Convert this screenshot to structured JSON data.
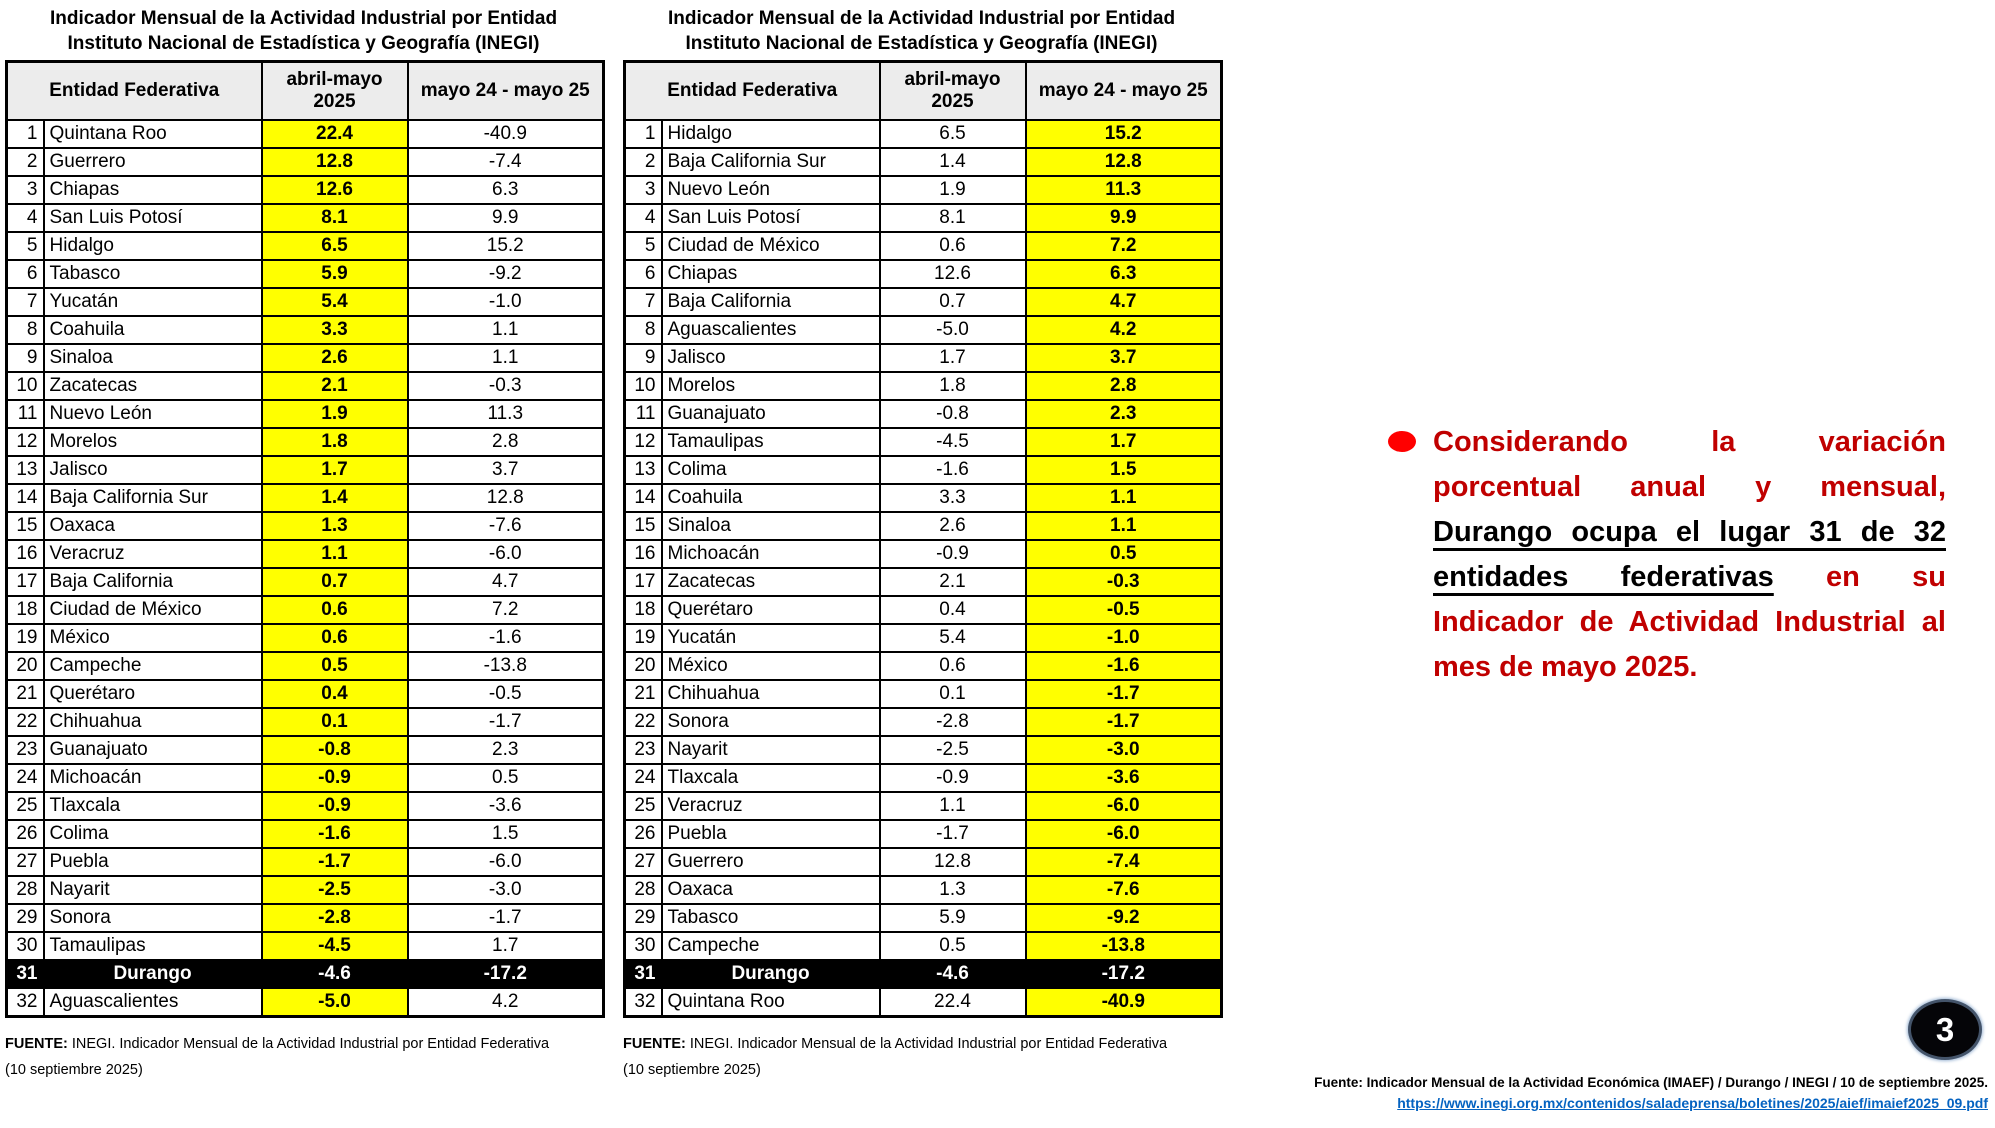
{
  "page": {
    "number": "3"
  },
  "colors": {
    "highlight_yellow": "#FFFF00",
    "durango_row_bg": "#000000",
    "header_fill": "#ECECEC",
    "annotation_red": "#C00000",
    "bullet_red": "#FF0000",
    "link_blue": "#0563C1"
  },
  "tables": [
    {
      "title_line1": "Indicador Mensual de la Actividad Industrial por Entidad",
      "title_line2": "Instituto Nacional de Estadística y Geografía (INEGI)",
      "col_headers": {
        "entidad": "Entidad Federativa",
        "col1": "abril-mayo 2025",
        "col2": "mayo 24 - mayo 25"
      },
      "highlight_column": "col1",
      "rows": [
        {
          "rank": "1",
          "entidad": "Quintana Roo",
          "col1": "22.4",
          "col2": "-40.9",
          "highlight_row": false
        },
        {
          "rank": "2",
          "entidad": "Guerrero",
          "col1": "12.8",
          "col2": "-7.4",
          "highlight_row": false
        },
        {
          "rank": "3",
          "entidad": "Chiapas",
          "col1": "12.6",
          "col2": "6.3",
          "highlight_row": false
        },
        {
          "rank": "4",
          "entidad": "San Luis Potosí",
          "col1": "8.1",
          "col2": "9.9",
          "highlight_row": false
        },
        {
          "rank": "5",
          "entidad": "Hidalgo",
          "col1": "6.5",
          "col2": "15.2",
          "highlight_row": false
        },
        {
          "rank": "6",
          "entidad": "Tabasco",
          "col1": "5.9",
          "col2": "-9.2",
          "highlight_row": false
        },
        {
          "rank": "7",
          "entidad": "Yucatán",
          "col1": "5.4",
          "col2": "-1.0",
          "highlight_row": false
        },
        {
          "rank": "8",
          "entidad": "Coahuila",
          "col1": "3.3",
          "col2": "1.1",
          "highlight_row": false
        },
        {
          "rank": "9",
          "entidad": "Sinaloa",
          "col1": "2.6",
          "col2": "1.1",
          "highlight_row": false
        },
        {
          "rank": "10",
          "entidad": "Zacatecas",
          "col1": "2.1",
          "col2": "-0.3",
          "highlight_row": false
        },
        {
          "rank": "11",
          "entidad": "Nuevo León",
          "col1": "1.9",
          "col2": "11.3",
          "highlight_row": false
        },
        {
          "rank": "12",
          "entidad": "Morelos",
          "col1": "1.8",
          "col2": "2.8",
          "highlight_row": false
        },
        {
          "rank": "13",
          "entidad": "Jalisco",
          "col1": "1.7",
          "col2": "3.7",
          "highlight_row": false
        },
        {
          "rank": "14",
          "entidad": "Baja California Sur",
          "col1": "1.4",
          "col2": "12.8",
          "highlight_row": false
        },
        {
          "rank": "15",
          "entidad": "Oaxaca",
          "col1": "1.3",
          "col2": "-7.6",
          "highlight_row": false
        },
        {
          "rank": "16",
          "entidad": "Veracruz",
          "col1": "1.1",
          "col2": "-6.0",
          "highlight_row": false
        },
        {
          "rank": "17",
          "entidad": "Baja California",
          "col1": "0.7",
          "col2": "4.7",
          "highlight_row": false
        },
        {
          "rank": "18",
          "entidad": "Ciudad de México",
          "col1": "0.6",
          "col2": "7.2",
          "highlight_row": false
        },
        {
          "rank": "19",
          "entidad": "México",
          "col1": "0.6",
          "col2": "-1.6",
          "highlight_row": false
        },
        {
          "rank": "20",
          "entidad": "Campeche",
          "col1": "0.5",
          "col2": "-13.8",
          "highlight_row": false
        },
        {
          "rank": "21",
          "entidad": "Querétaro",
          "col1": "0.4",
          "col2": "-0.5",
          "highlight_row": false
        },
        {
          "rank": "22",
          "entidad": "Chihuahua",
          "col1": "0.1",
          "col2": "-1.7",
          "highlight_row": false
        },
        {
          "rank": "23",
          "entidad": "Guanajuato",
          "col1": "-0.8",
          "col2": "2.3",
          "highlight_row": false
        },
        {
          "rank": "24",
          "entidad": "Michoacán",
          "col1": "-0.9",
          "col2": "0.5",
          "highlight_row": false
        },
        {
          "rank": "25",
          "entidad": "Tlaxcala",
          "col1": "-0.9",
          "col2": "-3.6",
          "highlight_row": false
        },
        {
          "rank": "26",
          "entidad": "Colima",
          "col1": "-1.6",
          "col2": "1.5",
          "highlight_row": false
        },
        {
          "rank": "27",
          "entidad": "Puebla",
          "col1": "-1.7",
          "col2": "-6.0",
          "highlight_row": false
        },
        {
          "rank": "28",
          "entidad": "Nayarit",
          "col1": "-2.5",
          "col2": "-3.0",
          "highlight_row": false
        },
        {
          "rank": "29",
          "entidad": "Sonora",
          "col1": "-2.8",
          "col2": "-1.7",
          "highlight_row": false
        },
        {
          "rank": "30",
          "entidad": "Tamaulipas",
          "col1": "-4.5",
          "col2": "1.7",
          "highlight_row": false
        },
        {
          "rank": "31",
          "entidad": "Durango",
          "col1": "-4.6",
          "col2": "-17.2",
          "highlight_row": true
        },
        {
          "rank": "32",
          "entidad": "Aguascalientes",
          "col1": "-5.0",
          "col2": "4.2",
          "highlight_row": false
        }
      ],
      "fuente_label": "FUENTE:",
      "fuente_text": " INEGI. Indicador Mensual de la Actividad Industrial por Entidad Federativa",
      "fuente_line2": "(10 septiembre 2025)"
    },
    {
      "title_line1": "Indicador Mensual de la Actividad Industrial por Entidad",
      "title_line2": "Instituto Nacional de Estadística y Geografía (INEGI)",
      "col_headers": {
        "entidad": "Entidad Federativa",
        "col1": "abril-mayo 2025",
        "col2": "mayo 24 - mayo 25"
      },
      "highlight_column": "col2",
      "rows": [
        {
          "rank": "1",
          "entidad": "Hidalgo",
          "col1": "6.5",
          "col2": "15.2",
          "highlight_row": false
        },
        {
          "rank": "2",
          "entidad": "Baja California Sur",
          "col1": "1.4",
          "col2": "12.8",
          "highlight_row": false
        },
        {
          "rank": "3",
          "entidad": "Nuevo León",
          "col1": "1.9",
          "col2": "11.3",
          "highlight_row": false
        },
        {
          "rank": "4",
          "entidad": "San Luis Potosí",
          "col1": "8.1",
          "col2": "9.9",
          "highlight_row": false
        },
        {
          "rank": "5",
          "entidad": "Ciudad de México",
          "col1": "0.6",
          "col2": "7.2",
          "highlight_row": false
        },
        {
          "rank": "6",
          "entidad": "Chiapas",
          "col1": "12.6",
          "col2": "6.3",
          "highlight_row": false
        },
        {
          "rank": "7",
          "entidad": "Baja California",
          "col1": "0.7",
          "col2": "4.7",
          "highlight_row": false
        },
        {
          "rank": "8",
          "entidad": "Aguascalientes",
          "col1": "-5.0",
          "col2": "4.2",
          "highlight_row": false
        },
        {
          "rank": "9",
          "entidad": "Jalisco",
          "col1": "1.7",
          "col2": "3.7",
          "highlight_row": false
        },
        {
          "rank": "10",
          "entidad": "Morelos",
          "col1": "1.8",
          "col2": "2.8",
          "highlight_row": false
        },
        {
          "rank": "11",
          "entidad": "Guanajuato",
          "col1": "-0.8",
          "col2": "2.3",
          "highlight_row": false
        },
        {
          "rank": "12",
          "entidad": "Tamaulipas",
          "col1": "-4.5",
          "col2": "1.7",
          "highlight_row": false
        },
        {
          "rank": "13",
          "entidad": "Colima",
          "col1": "-1.6",
          "col2": "1.5",
          "highlight_row": false
        },
        {
          "rank": "14",
          "entidad": "Coahuila",
          "col1": "3.3",
          "col2": "1.1",
          "highlight_row": false
        },
        {
          "rank": "15",
          "entidad": "Sinaloa",
          "col1": "2.6",
          "col2": "1.1",
          "highlight_row": false
        },
        {
          "rank": "16",
          "entidad": "Michoacán",
          "col1": "-0.9",
          "col2": "0.5",
          "highlight_row": false
        },
        {
          "rank": "17",
          "entidad": "Zacatecas",
          "col1": "2.1",
          "col2": "-0.3",
          "highlight_row": false
        },
        {
          "rank": "18",
          "entidad": "Querétaro",
          "col1": "0.4",
          "col2": "-0.5",
          "highlight_row": false
        },
        {
          "rank": "19",
          "entidad": "Yucatán",
          "col1": "5.4",
          "col2": "-1.0",
          "highlight_row": false
        },
        {
          "rank": "20",
          "entidad": "México",
          "col1": "0.6",
          "col2": "-1.6",
          "highlight_row": false
        },
        {
          "rank": "21",
          "entidad": "Chihuahua",
          "col1": "0.1",
          "col2": "-1.7",
          "highlight_row": false
        },
        {
          "rank": "22",
          "entidad": "Sonora",
          "col1": "-2.8",
          "col2": "-1.7",
          "highlight_row": false
        },
        {
          "rank": "23",
          "entidad": "Nayarit",
          "col1": "-2.5",
          "col2": "-3.0",
          "highlight_row": false
        },
        {
          "rank": "24",
          "entidad": "Tlaxcala",
          "col1": "-0.9",
          "col2": "-3.6",
          "highlight_row": false
        },
        {
          "rank": "25",
          "entidad": "Veracruz",
          "col1": "1.1",
          "col2": "-6.0",
          "highlight_row": false
        },
        {
          "rank": "26",
          "entidad": "Puebla",
          "col1": "-1.7",
          "col2": "-6.0",
          "highlight_row": false
        },
        {
          "rank": "27",
          "entidad": "Guerrero",
          "col1": "12.8",
          "col2": "-7.4",
          "highlight_row": false
        },
        {
          "rank": "28",
          "entidad": "Oaxaca",
          "col1": "1.3",
          "col2": "-7.6",
          "highlight_row": false
        },
        {
          "rank": "29",
          "entidad": "Tabasco",
          "col1": "5.9",
          "col2": "-9.2",
          "highlight_row": false
        },
        {
          "rank": "30",
          "entidad": "Campeche",
          "col1": "0.5",
          "col2": "-13.8",
          "highlight_row": false
        },
        {
          "rank": "31",
          "entidad": "Durango",
          "col1": "-4.6",
          "col2": "-17.2",
          "highlight_row": true
        },
        {
          "rank": "32",
          "entidad": "Quintana Roo",
          "col1": "22.4",
          "col2": "-40.9",
          "highlight_row": false
        }
      ],
      "fuente_label": "FUENTE:",
      "fuente_text": " INEGI. Indicador Mensual de la Actividad Industrial por Entidad Federativa",
      "fuente_line2": "(10 septiembre 2025)"
    }
  ],
  "annotation": {
    "segment1": "Considerando la variación porcentual anual y mensual, ",
    "segment2_underlined": "Durango ocupa el lugar 31 de 32 entidades federativas",
    "segment3": " en su Indicador de Actividad Industrial al mes de mayo 2025."
  },
  "footer_source": {
    "text": "Fuente: Indicador Mensual de la Actividad Económica (IMAEF) / Durango / INEGI / 10 de septiembre 2025.",
    "link": "https://www.inegi.org.mx/contenidos/saladeprensa/boletines/2025/aief/imaief2025_09.pdf"
  }
}
